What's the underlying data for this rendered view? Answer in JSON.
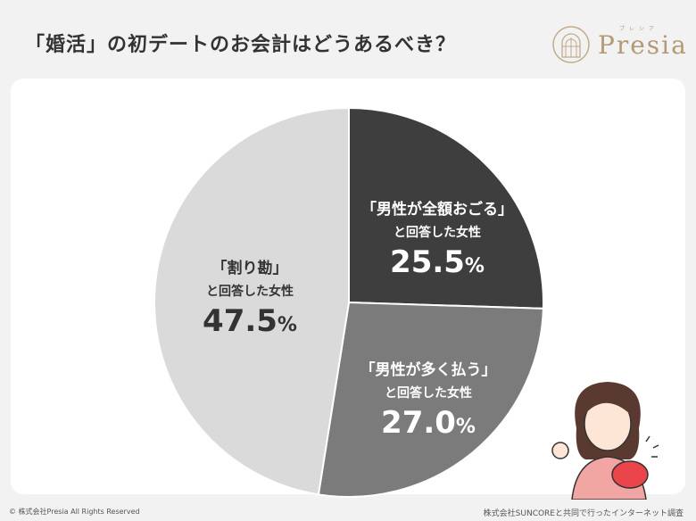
{
  "title": "「婚活」の初デートのお会計はどうあるべき？",
  "logo": {
    "text": "Presia",
    "kana": "プレシア"
  },
  "chart_data": {
    "type": "pie",
    "title": "「婚活」の初デートのお会計はどうあるべき？",
    "start": "12 o'clock, clockwise",
    "slices": [
      {
        "label": "「男性が全額おごる」",
        "sub": "と回答した女性",
        "value": 25.5,
        "display": "25.5",
        "color": "#3e3e3e"
      },
      {
        "label": "「男性が多く払う」",
        "sub": "と回答した女性",
        "value": 27.0,
        "display": "27.0",
        "color": "#7b7b7b"
      },
      {
        "label": "「割り勘」",
        "sub": "と回答した女性",
        "value": 47.5,
        "display": "47.5",
        "color": "#dadada"
      }
    ],
    "unit": "%"
  },
  "footer": {
    "copyright": "© 株式会社Presia All Rights Reserved",
    "source": "株式会社SUNCOREと共同で行ったインターネット調査"
  }
}
